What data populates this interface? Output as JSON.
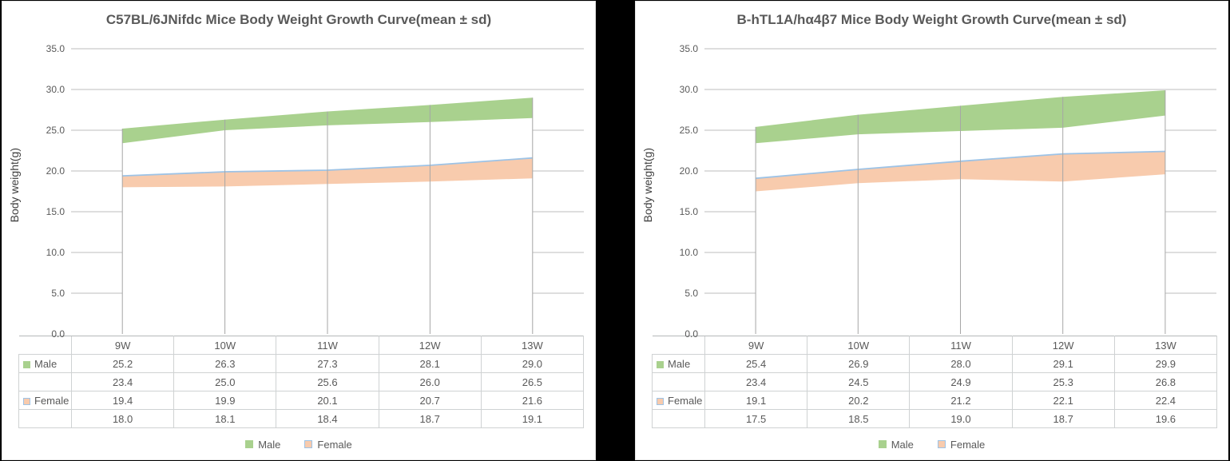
{
  "chart_data": [
    {
      "type": "area",
      "title": "C57BL/6JNifdc Mice Body Weight Growth Curve(mean ± sd)",
      "ylabel": "Body weight(g)",
      "xlabel": "",
      "ylim": [
        0,
        35
      ],
      "ytick_step": 5,
      "ytick_labels": [
        "0.0",
        "5.0",
        "10.0",
        "15.0",
        "20.0",
        "25.0",
        "30.0",
        "35.0"
      ],
      "grid": true,
      "legend_position": "bottom",
      "categories": [
        "9W",
        "10W",
        "11W",
        "12W",
        "13W"
      ],
      "series": [
        {
          "name": "Male",
          "upper": [
            25.2,
            26.3,
            27.3,
            28.1,
            29.0
          ],
          "lower": [
            23.4,
            25.0,
            25.6,
            26.0,
            26.5
          ]
        },
        {
          "name": "Female",
          "upper": [
            19.4,
            19.9,
            20.1,
            20.7,
            21.6
          ],
          "lower": [
            18.0,
            18.1,
            18.4,
            18.7,
            19.1
          ]
        }
      ]
    },
    {
      "type": "area",
      "title": "B-hTL1A/hα4β7 Mice Body Weight Growth Curve(mean ± sd)",
      "ylabel": "Body weight(g)",
      "xlabel": "",
      "ylim": [
        0,
        35
      ],
      "ytick_step": 5,
      "ytick_labels": [
        "0.0",
        "5.0",
        "10.0",
        "15.0",
        "20.0",
        "25.0",
        "30.0",
        "35.0"
      ],
      "grid": true,
      "legend_position": "bottom",
      "categories": [
        "9W",
        "10W",
        "11W",
        "12W",
        "13W"
      ],
      "series": [
        {
          "name": "Male",
          "upper": [
            25.4,
            26.9,
            28.0,
            29.1,
            29.9
          ],
          "lower": [
            23.4,
            24.5,
            24.9,
            25.3,
            26.8
          ]
        },
        {
          "name": "Female",
          "upper": [
            19.1,
            20.2,
            21.2,
            22.1,
            22.4
          ],
          "lower": [
            17.5,
            18.5,
            19.0,
            18.7,
            19.6
          ]
        }
      ]
    }
  ],
  "colors": {
    "male_fill": "#A9D18E",
    "female_fill": "#F8CBAD",
    "female_line": "#9DC3E6",
    "gridline": "#BDBDBD",
    "dropline": "#A6A6A6",
    "title_text": "#595959",
    "axis_text": "#595959",
    "table_border": "#CFD2D3"
  }
}
